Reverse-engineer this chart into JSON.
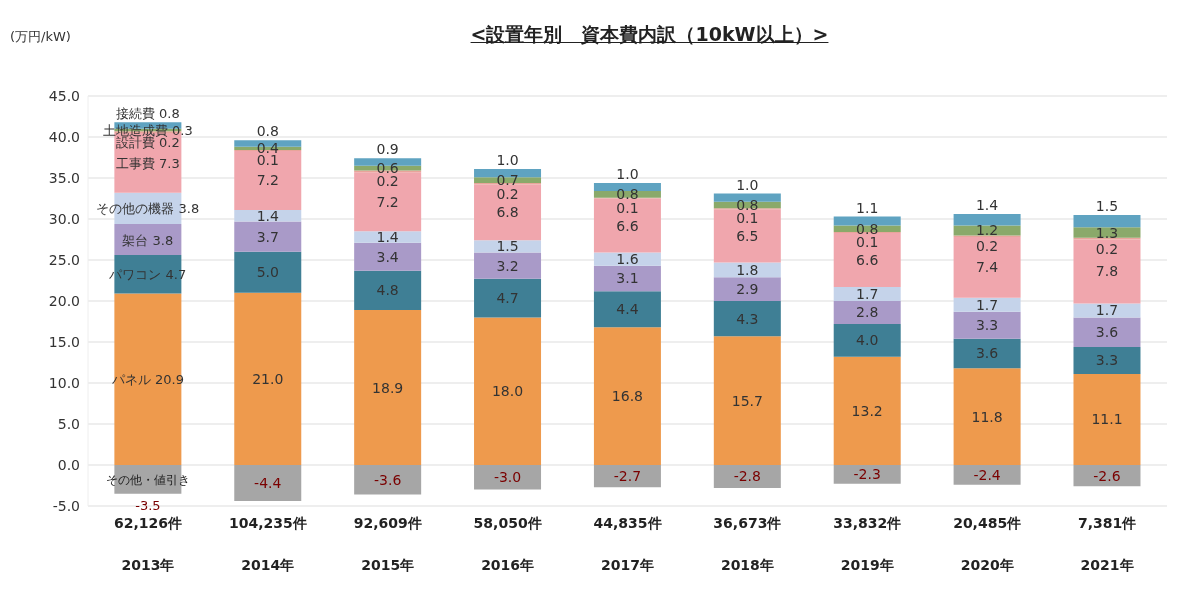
{
  "chart_data": {
    "type": "bar",
    "stacked": true,
    "title": "<設置年別　資本費内訳（10kW以上）>",
    "ylabel": "(万円/kW)",
    "categories": [
      "2013年",
      "2014年",
      "2015年",
      "2016年",
      "2017年",
      "2018年",
      "2019年",
      "2020年",
      "2021年"
    ],
    "annotations": [
      "62,126件",
      "104,235件",
      "92,609件",
      "58,050件",
      "44,835件",
      "36,673件",
      "33,832件",
      "20,485件",
      "7,381件"
    ],
    "series": [
      {
        "name": "パネル",
        "color": "#ee9a4d",
        "values": [
          20.9,
          21.0,
          18.9,
          18.0,
          16.8,
          15.7,
          13.2,
          11.8,
          11.1
        ],
        "value_labels": [
          "20.9",
          "21.0",
          "18.9",
          "18.0",
          "16.8",
          "15.7",
          "13.2",
          "11.8",
          "11.1"
        ]
      },
      {
        "name": "パワコン",
        "color": "#3f7f95",
        "values": [
          4.7,
          5.0,
          4.8,
          4.7,
          4.4,
          4.3,
          4.0,
          3.6,
          3.3
        ],
        "value_labels": [
          "4.7",
          "5.0",
          "4.8",
          "4.7",
          "4.4",
          "4.3",
          "4.0",
          "3.6",
          "3.3"
        ]
      },
      {
        "name": "架台",
        "color": "#a99ac8",
        "values": [
          3.8,
          3.7,
          3.4,
          3.2,
          3.1,
          2.9,
          2.8,
          3.3,
          3.6
        ],
        "value_labels": [
          "3.8",
          "3.7",
          "3.4",
          "3.2",
          "3.1",
          "2.9",
          "2.8",
          "3.3",
          "3.6"
        ]
      },
      {
        "name": "その他の機器",
        "color": "#c5d3ea",
        "values": [
          3.8,
          1.4,
          1.4,
          1.5,
          1.6,
          1.8,
          1.7,
          1.7,
          1.7
        ],
        "value_labels": [
          "3.8",
          "1.4",
          "1.4",
          "1.5",
          "1.6",
          "1.8",
          "1.7",
          "1.7",
          "1.7"
        ]
      },
      {
        "name": "工事費",
        "color": "#f0a6ad",
        "values": [
          7.3,
          7.2,
          7.2,
          6.8,
          6.6,
          6.5,
          6.6,
          7.4,
          7.8
        ],
        "value_labels": [
          "7.3",
          "7.2",
          "7.2",
          "6.8",
          "6.6",
          "6.5",
          "6.6",
          "7.4",
          "7.8"
        ]
      },
      {
        "name": "設計費",
        "color": "#e8a49a",
        "values": [
          0.2,
          0.1,
          0.2,
          0.2,
          0.1,
          0.1,
          0.1,
          0.2,
          0.2
        ],
        "value_labels": [
          "0.2",
          "0.1",
          "0.2",
          "0.2",
          "0.1",
          "0.1",
          "0.1",
          "0.2",
          "0.2"
        ]
      },
      {
        "name": "土地造成費",
        "color": "#8aa96a",
        "values": [
          0.3,
          0.4,
          0.6,
          0.7,
          0.8,
          0.8,
          0.8,
          1.2,
          1.3
        ],
        "value_labels": [
          "0.3",
          "0.4",
          "0.6",
          "0.7",
          "0.8",
          "0.8",
          "0.8",
          "1.2",
          "1.3"
        ]
      },
      {
        "name": "接続費",
        "color": "#5fa3c1",
        "values": [
          0.8,
          0.8,
          0.9,
          1.0,
          1.0,
          1.0,
          1.1,
          1.4,
          1.5
        ],
        "value_labels": [
          "0.8",
          "0.8",
          "0.9",
          "1.0",
          "1.0",
          "1.0",
          "1.1",
          "1.4",
          "1.5"
        ]
      },
      {
        "name": "その他・値引き",
        "color": "#a6a6a6",
        "values": [
          -3.5,
          -4.4,
          -3.6,
          -3.0,
          -2.7,
          -2.8,
          -2.3,
          -2.4,
          -2.6
        ],
        "value_labels": [
          "-3.5",
          "-4.4",
          "-3.6",
          "-3.0",
          "-2.7",
          "-2.8",
          "-2.3",
          "-2.4",
          "-2.6"
        ]
      }
    ],
    "ylim": [
      -5,
      45
    ],
    "yticks": [
      {
        "value": -5,
        "label": "-5.0"
      },
      {
        "value": 0,
        "label": "0.0"
      },
      {
        "value": 5,
        "label": "5.0"
      },
      {
        "value": 10,
        "label": "10.0"
      },
      {
        "value": 15,
        "label": "15.0"
      },
      {
        "value": 20,
        "label": "20.0"
      },
      {
        "value": 25,
        "label": "25.0"
      },
      {
        "value": 30,
        "label": "30.0"
      },
      {
        "value": 35,
        "label": "35.0"
      },
      {
        "value": 40,
        "label": "40.0"
      },
      {
        "value": 45,
        "label": "45.0"
      }
    ],
    "grid": "y",
    "legend": false
  }
}
